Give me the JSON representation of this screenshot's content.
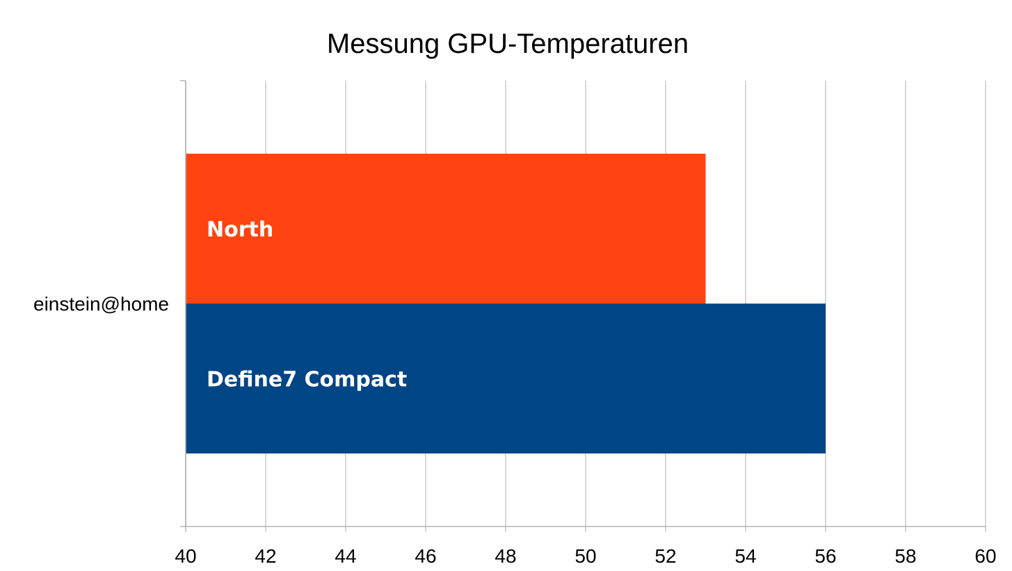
{
  "chart_data": {
    "type": "bar",
    "orientation": "horizontal",
    "title": "Messung GPU-Temperaturen",
    "categories": [
      "einstein@home"
    ],
    "series": [
      {
        "name": "North",
        "values": [
          53
        ],
        "color": "#ff4411"
      },
      {
        "name": "Define7 Compact",
        "values": [
          56
        ],
        "color": "#004586"
      }
    ],
    "xlim": [
      40,
      60
    ],
    "xticks": [
      "40",
      "42",
      "44",
      "46",
      "48",
      "50",
      "52",
      "54",
      "56",
      "58",
      "60"
    ],
    "grid": true,
    "legend": "none"
  }
}
